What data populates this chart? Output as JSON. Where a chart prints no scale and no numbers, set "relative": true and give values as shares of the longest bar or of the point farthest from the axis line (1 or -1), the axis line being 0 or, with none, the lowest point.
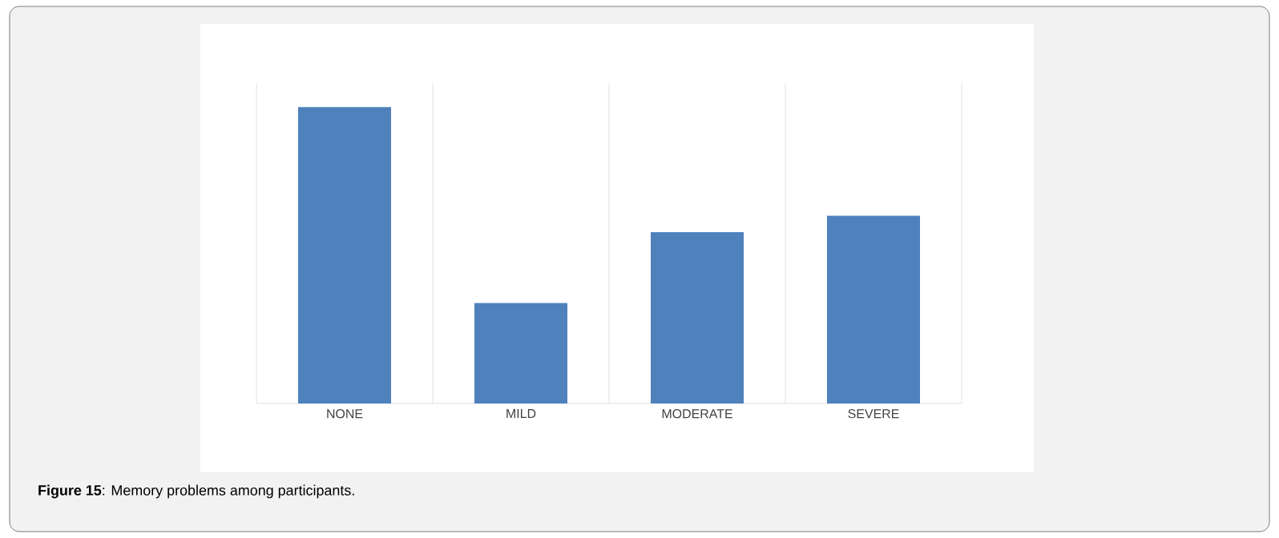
{
  "chart_data": {
    "type": "bar",
    "relative": true,
    "categories": [
      "NONE",
      "MILD",
      "MODERATE",
      "SEVERE"
    ],
    "values": [
      1,
      0.339,
      0.578,
      0.633
    ],
    "color": "#4f81bd",
    "grid": "x",
    "annotations": [
      "**Figure 15**: Memory problems among participants."
    ]
  }
}
